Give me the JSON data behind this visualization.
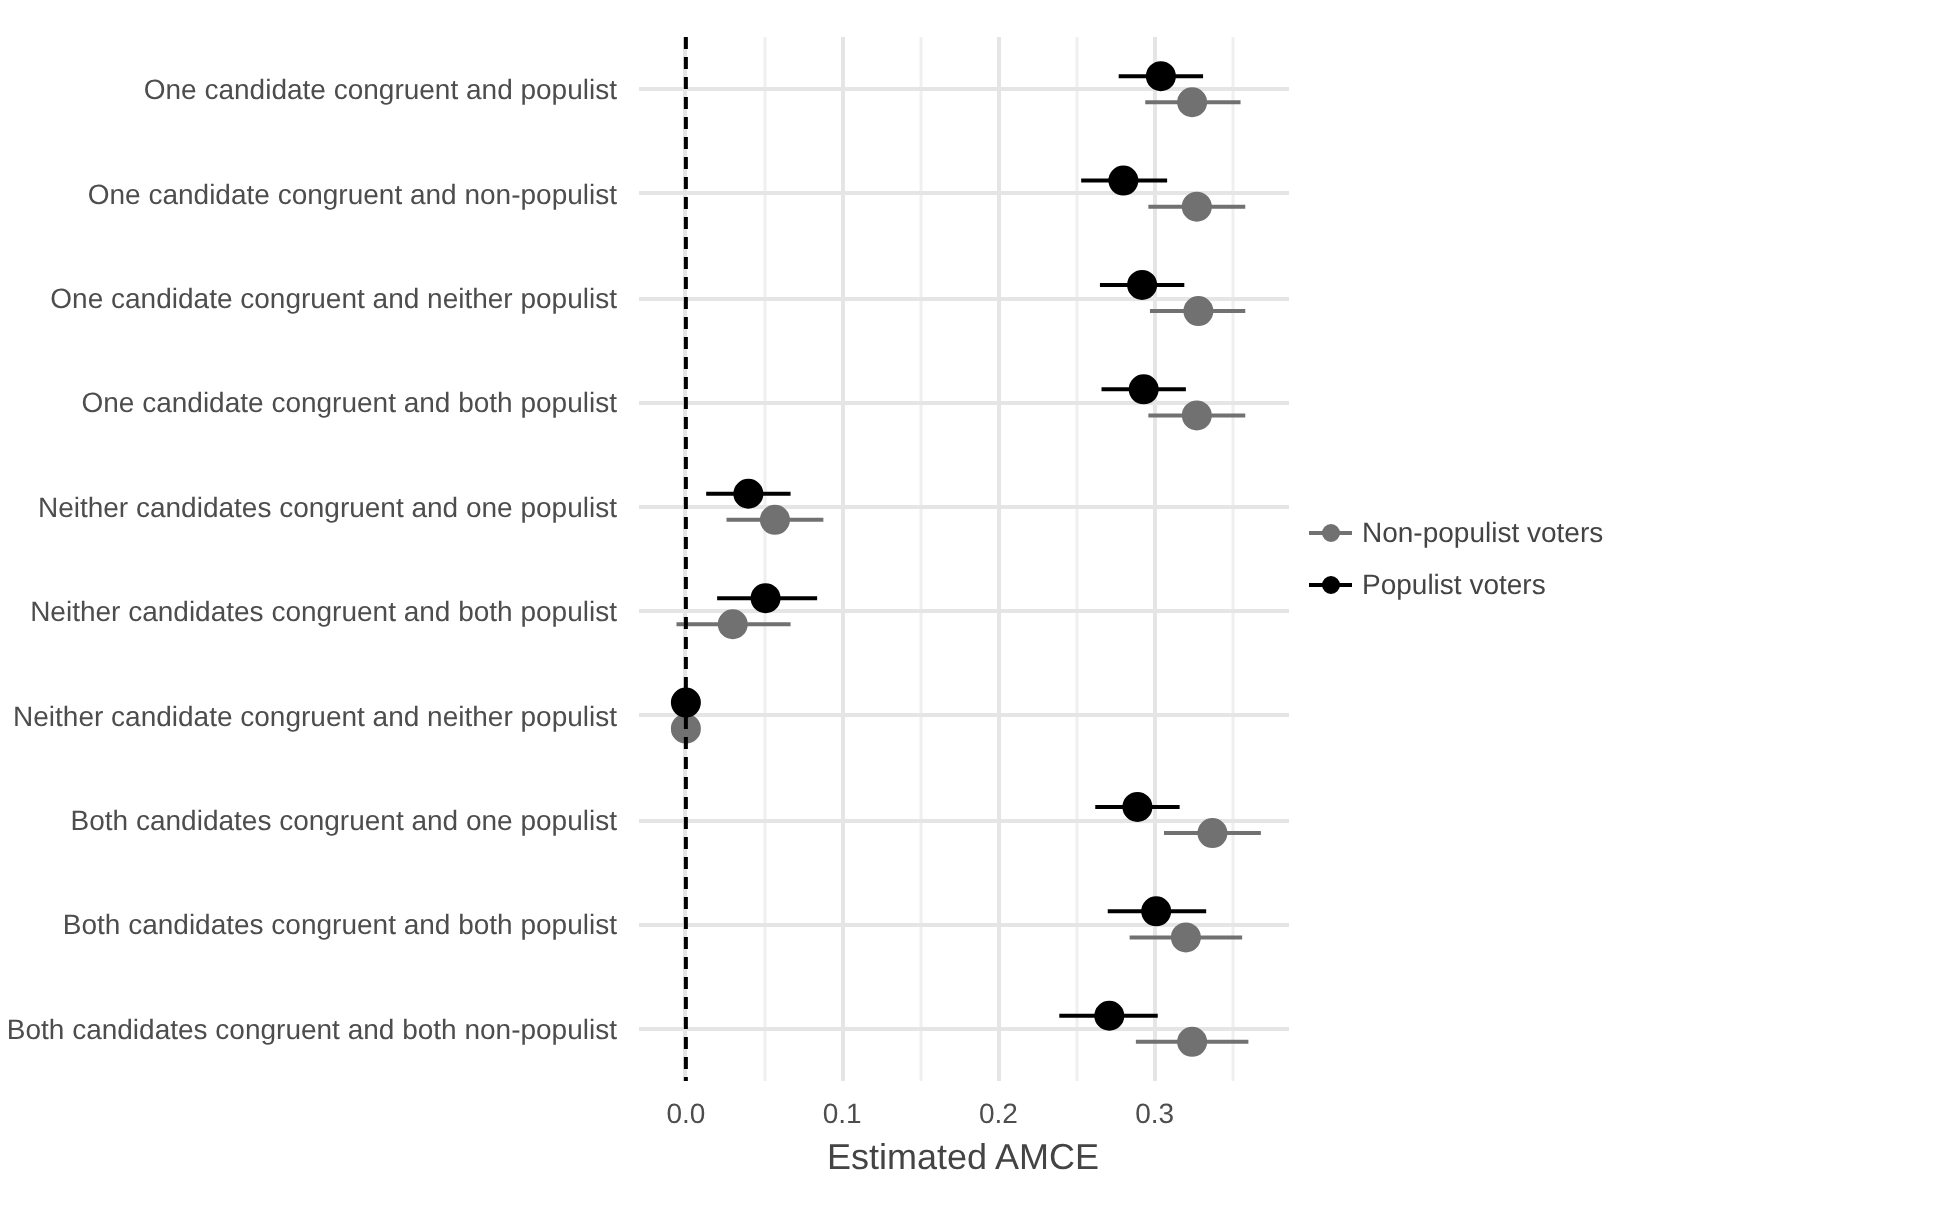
{
  "chart_data": {
    "type": "scatter",
    "orientation": "horizontal",
    "xlabel": "Estimated AMCE",
    "categories": [
      "One candidate congruent and populist",
      "One candidate congruent and non-populist",
      "One candidate congruent and neither populist",
      "One candidate congruent and both populist",
      "Neither candidates congruent and one populist",
      "Neither candidates congruent and both populist",
      "Neither candidate congruent and neither populist",
      "Both candidates congruent and one populist",
      "Both candidates congruent and both populist",
      "Both candidates congruent and both non-populist"
    ],
    "series": [
      {
        "name": "Non-populist voters",
        "color": "#717171",
        "values": [
          0.324,
          0.327,
          0.328,
          0.327,
          0.057,
          0.03,
          0,
          0.337,
          0.32,
          0.324
        ],
        "errors": [
          [
            0.294,
            0.355
          ],
          [
            0.296,
            0.358
          ],
          [
            0.297,
            0.358
          ],
          [
            0.296,
            0.358
          ],
          [
            0.026,
            0.088
          ],
          [
            -0.006,
            0.067
          ],
          null,
          [
            0.306,
            0.368
          ],
          [
            0.284,
            0.356
          ],
          [
            0.288,
            0.36
          ]
        ]
      },
      {
        "name": "Populist voters",
        "color": "#000000",
        "values": [
          0.304,
          0.28,
          0.292,
          0.293,
          0.04,
          0.051,
          0,
          0.289,
          0.301,
          0.271
        ],
        "errors": [
          [
            0.277,
            0.331
          ],
          [
            0.253,
            0.308
          ],
          [
            0.265,
            0.319
          ],
          [
            0.266,
            0.32
          ],
          [
            0.013,
            0.067
          ],
          [
            0.02,
            0.084
          ],
          null,
          [
            0.262,
            0.316
          ],
          [
            0.27,
            0.333
          ],
          [
            0.239,
            0.302
          ]
        ]
      }
    ],
    "xlim": [
      -0.03,
      0.386
    ],
    "xticks": [
      {
        "value": 0,
        "label": "0.0"
      },
      0.1,
      0.2,
      0.3
    ],
    "ref_lines": [
      {
        "axis": "x",
        "value": 0,
        "color": "#000000",
        "line_style": "dashed"
      }
    ],
    "grid": true,
    "legend": "right",
    "marker": "circle"
  }
}
